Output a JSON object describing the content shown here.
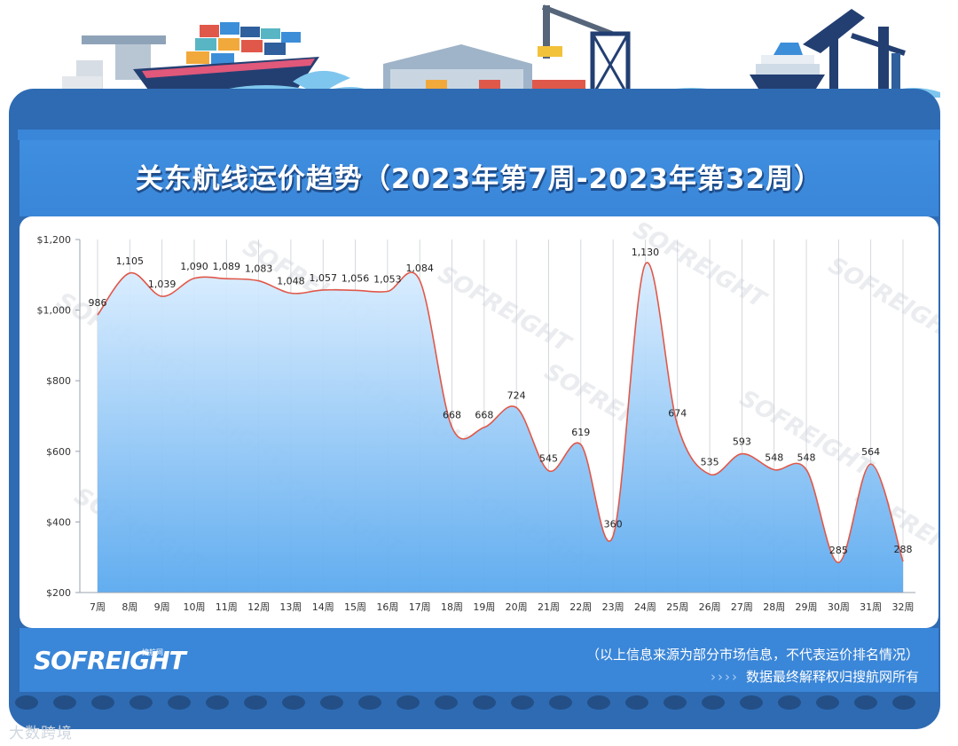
{
  "title": "关东航线运价趋势（2023年第7周-2023年第32周）",
  "logo": {
    "name": "SOFREIGHT",
    "sub": "搜航网"
  },
  "footer": {
    "source_note": "（以上信息来源为部分市场信息，不代表运价排名情况）",
    "arrows": "››››",
    "rights_note": "数据最终解释权归搜航网所有"
  },
  "corner_watermark": "大数跨境",
  "colors": {
    "frame": "#2e6bb3",
    "panel": "#3a86d8",
    "line": "#e0584a",
    "area_top": "#dbeeff",
    "area_bottom": "#5aa9ef"
  },
  "chart_data": {
    "type": "area",
    "title": "关东航线运价趋势（2023年第7周-2023年第32周）",
    "categories": [
      "7周",
      "8周",
      "9周",
      "10周",
      "11周",
      "12周",
      "13周",
      "14周",
      "15周",
      "16周",
      "17周",
      "18周",
      "19周",
      "20周",
      "21周",
      "22周",
      "23周",
      "24周",
      "25周",
      "26周",
      "27周",
      "28周",
      "29周",
      "30周",
      "31周",
      "32周"
    ],
    "series": [
      {
        "values": [
          986,
          1105,
          1039,
          1090,
          1089,
          1083,
          1048,
          1057,
          1056,
          1053,
          1084,
          668,
          668,
          724,
          545,
          619,
          360,
          1130,
          674,
          535,
          593,
          548,
          548,
          285,
          564,
          288
        ]
      }
    ],
    "data_labels": [
      "986",
      "1,105",
      "1,039",
      "1,090",
      "1,089",
      "1,083",
      "1,048",
      "1,057",
      "1,056",
      "1,053",
      "1,084",
      "668",
      "668",
      "724",
      "545",
      "619",
      "360",
      "1,130",
      "674",
      "535",
      "593",
      "548",
      "548",
      "285",
      "564",
      "288"
    ],
    "yticks": [
      200,
      400,
      600,
      800,
      1000,
      1200
    ],
    "ytick_labels": [
      "$200",
      "$400",
      "$600",
      "$800",
      "$1,000",
      "$1,200"
    ],
    "ylim": [
      200,
      1200
    ],
    "watermark": "SOFREIGHT",
    "grid": "vertical",
    "smooth": true
  }
}
